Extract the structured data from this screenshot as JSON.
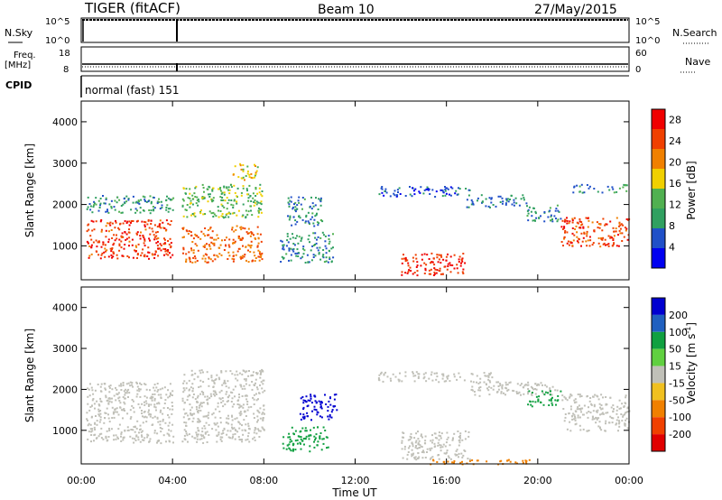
{
  "header": {
    "radar": "TIGER (fitACF)",
    "beam": "Beam 10",
    "date": "27/May/2015"
  },
  "status_panels": {
    "nsky_label": "N.Sky",
    "nsky_ticks": [
      "10^5",
      "10^0"
    ],
    "nsearch_label": "N.Search",
    "nsearch_ticks": [
      "10^5",
      "10^0"
    ],
    "freq_label": "Freq.",
    "freq_unit": "[MHz]",
    "freq_ticks": [
      "18",
      "8"
    ],
    "nave_label": "Nave",
    "nave_ticks": [
      "60",
      "0"
    ],
    "cpid_label": "CPID",
    "cpid_value": "normal (fast) 151"
  },
  "colors": {
    "power_scale": [
      "#0000f0",
      "#2050c8",
      "#30a060",
      "#50b050",
      "#f0d000",
      "#f08000",
      "#f04000",
      "#f00000"
    ],
    "velocity_scale": [
      "#0000d0",
      "#2060c0",
      "#10a040",
      "#60d040",
      "#c0c0b8",
      "#f0c020",
      "#f08000",
      "#f04000",
      "#e00000"
    ]
  },
  "chart_data": [
    {
      "type": "heatmap",
      "name": "power",
      "ylabel": "Slant Range [km]",
      "xlim": [
        "00:00",
        "24:00"
      ],
      "ylim": [
        180,
        4500
      ],
      "yticks": [
        1000,
        2000,
        3000,
        4000
      ],
      "xticks": [
        "00:00",
        "04:00",
        "08:00",
        "12:00",
        "16:00",
        "20:00",
        "00:00"
      ],
      "colorbar": {
        "label": "Power [dB]",
        "ticks": [
          4,
          8,
          12,
          16,
          20,
          24,
          28
        ],
        "range": [
          0,
          30
        ]
      },
      "regions": [
        {
          "t0": 0.2,
          "t1": 4.0,
          "r0": 700,
          "r1": 1650,
          "level": 27
        },
        {
          "t0": 0.2,
          "t1": 4.0,
          "r0": 1800,
          "r1": 2250,
          "level": 10
        },
        {
          "t0": 4.4,
          "t1": 7.9,
          "r0": 600,
          "r1": 1500,
          "level": 24
        },
        {
          "t0": 4.4,
          "t1": 7.9,
          "r0": 1700,
          "r1": 2500,
          "level": 14
        },
        {
          "t0": 6.6,
          "t1": 7.7,
          "r0": 2600,
          "r1": 3000,
          "level": 18
        },
        {
          "t0": 8.7,
          "t1": 11.0,
          "r0": 600,
          "r1": 1350,
          "level": 9
        },
        {
          "t0": 9.0,
          "t1": 10.6,
          "r0": 1500,
          "r1": 2200,
          "level": 9
        },
        {
          "t0": 13.0,
          "t1": 17.0,
          "r0": 2200,
          "r1": 2450,
          "level": 6
        },
        {
          "t0": 14.0,
          "t1": 16.8,
          "r0": 300,
          "r1": 850,
          "level": 28
        },
        {
          "t0": 16.8,
          "t1": 19.5,
          "r0": 1950,
          "r1": 2250,
          "level": 8
        },
        {
          "t0": 19.5,
          "t1": 21.0,
          "r0": 1600,
          "r1": 2000,
          "level": 9
        },
        {
          "t0": 21.0,
          "t1": 24.0,
          "r0": 1000,
          "r1": 1700,
          "level": 26
        },
        {
          "t0": 21.5,
          "t1": 24.0,
          "r0": 2300,
          "r1": 2500,
          "level": 9
        }
      ]
    },
    {
      "type": "heatmap",
      "name": "velocity",
      "ylabel": "Slant Range [km]",
      "xlabel": "Time UT",
      "xlim": [
        "00:00",
        "24:00"
      ],
      "ylim": [
        180,
        4500
      ],
      "yticks": [
        1000,
        2000,
        3000,
        4000
      ],
      "xticks": [
        "00:00",
        "04:00",
        "08:00",
        "12:00",
        "16:00",
        "20:00",
        "00:00"
      ],
      "colorbar": {
        "label": "Velocity [m s^-1]",
        "ticks": [
          200,
          100,
          50,
          15,
          -15,
          -50,
          -100,
          -200
        ]
      },
      "regions": [
        {
          "t0": 0.2,
          "t1": 4.0,
          "r0": 700,
          "r1": 2200,
          "level": 0
        },
        {
          "t0": 4.4,
          "t1": 8.0,
          "r0": 700,
          "r1": 2500,
          "level": 0
        },
        {
          "t0": 9.5,
          "t1": 11.2,
          "r0": 1250,
          "r1": 1900,
          "level": 210
        },
        {
          "t0": 8.8,
          "t1": 10.8,
          "r0": 500,
          "r1": 1100,
          "level": 40
        },
        {
          "t0": 13.0,
          "t1": 18.0,
          "r0": 2200,
          "r1": 2450,
          "level": 0
        },
        {
          "t0": 14.0,
          "t1": 17.0,
          "r0": 300,
          "r1": 1000,
          "level": 0
        },
        {
          "t0": 17.0,
          "t1": 21.0,
          "r0": 1850,
          "r1": 2200,
          "level": 0
        },
        {
          "t0": 19.5,
          "t1": 21.0,
          "r0": 1600,
          "r1": 2000,
          "level": 40
        },
        {
          "t0": 21.0,
          "t1": 24.0,
          "r0": 1000,
          "r1": 1900,
          "level": 0
        },
        {
          "t0": 15.0,
          "t1": 20.0,
          "r0": 190,
          "r1": 300,
          "level": -60
        }
      ]
    }
  ]
}
